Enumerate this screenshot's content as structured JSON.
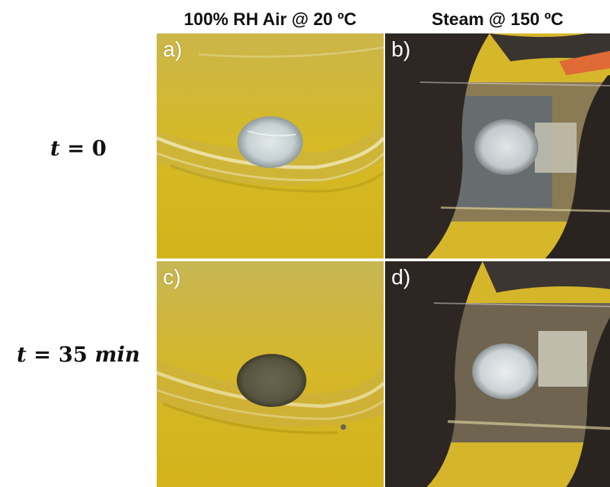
{
  "columns": {
    "left_header": "100% RH Air @ 20 ºC",
    "right_header": "Steam @ 150 ºC"
  },
  "rows": {
    "top_label": {
      "var": "t",
      "eq": "=",
      "val": "0",
      "unit": ""
    },
    "bottom_label": {
      "var": "t",
      "eq": "=",
      "val": "35",
      "unit": "min"
    }
  },
  "panels": {
    "a": {
      "letter": "a)",
      "sample_color": "#c9d3d6",
      "condition": "fresh"
    },
    "b": {
      "letter": "b)",
      "sample_color": "#c8ced2",
      "condition": "fresh"
    },
    "c": {
      "letter": "c)",
      "sample_color": "#5e5a45",
      "condition": "degraded"
    },
    "d": {
      "letter": "d)",
      "sample_color": "#d4dadd",
      "condition": "fresh"
    }
  },
  "colors": {
    "background_yellow": "#d9b81e",
    "dark_tube": "#2a2623",
    "glass_highlight": "#e8e2b0"
  }
}
